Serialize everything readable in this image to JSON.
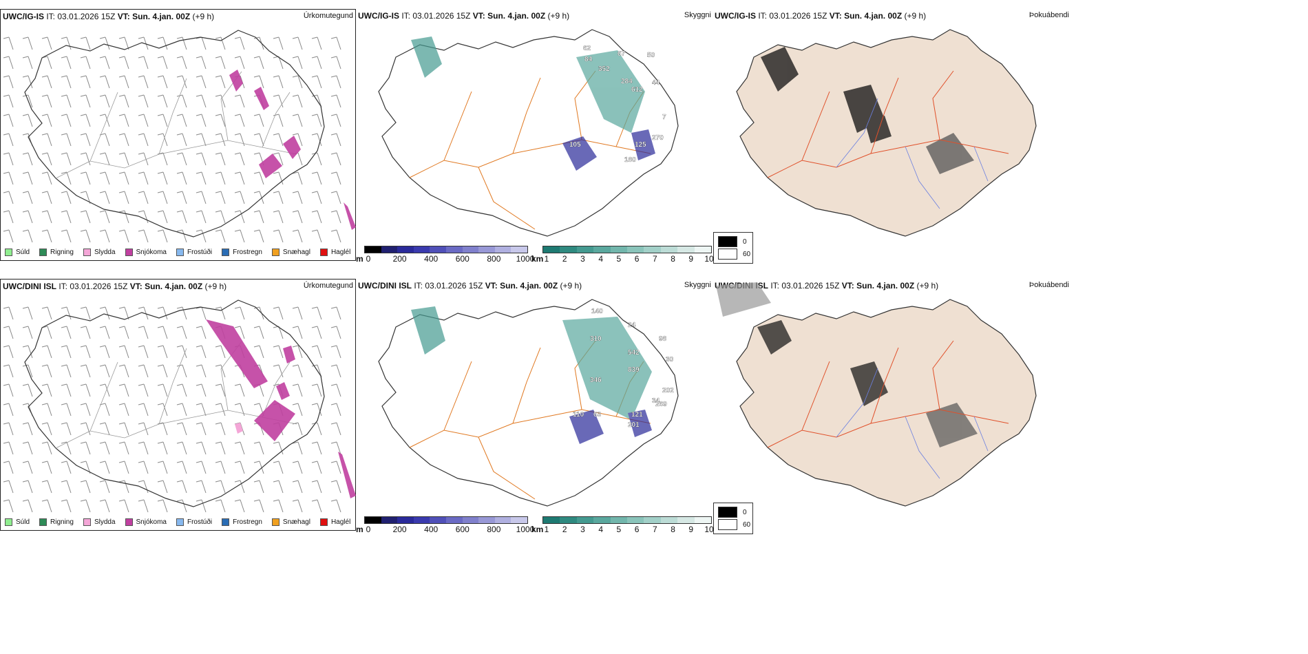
{
  "rows": [
    {
      "id": "igis",
      "model": "UWC/IG-IS",
      "it_label": "IT:",
      "it_value": "03.01.2026 15Z",
      "vt_label": "VT:",
      "vt_value": "Sun. 4.jan. 00Z",
      "lead": "(+9 h)",
      "precip_title": "Úrkomutegund",
      "cloud_title": "Skyggni",
      "fog_title": "Þokuábendi",
      "cloud_labels": [
        "62",
        "84",
        "352",
        "67",
        "284",
        "612",
        "44",
        "50",
        "105",
        "125",
        "270",
        "180",
        "7"
      ]
    },
    {
      "id": "dini",
      "model": "UWC/DINI ISL",
      "it_label": "IT:",
      "it_value": "03.01.2026 15Z",
      "vt_label": "VT:",
      "vt_value": "Sun. 4.jan. 00Z",
      "lead": "(+9 h)",
      "precip_title": "Úrkomutegund",
      "cloud_title": "Skyggni",
      "fog_title": "Þokuábendi",
      "cloud_labels": [
        "310",
        "24",
        "542",
        "98",
        "839",
        "30",
        "34",
        "202",
        "269",
        "121",
        "110",
        "63",
        "201",
        "140",
        "346"
      ]
    }
  ],
  "precip_legend": [
    {
      "label": "Súld",
      "color": "#90ee90"
    },
    {
      "label": "Rigning",
      "color": "#2e8b57"
    },
    {
      "label": "Slydda",
      "color": "#f4a6d7"
    },
    {
      "label": "Snjókoma",
      "color": "#c040a0"
    },
    {
      "label": "Frostúði",
      "color": "#87b8ee"
    },
    {
      "label": "Frostregn",
      "color": "#2a6db5"
    },
    {
      "label": "Snæhagl",
      "color": "#f0a020"
    },
    {
      "label": "Haglél",
      "color": "#e01010"
    }
  ],
  "elevation_bar": {
    "unit": "m",
    "ticks": [
      "0",
      "200",
      "400",
      "600",
      "800",
      "1000"
    ],
    "colors": [
      "#000000",
      "#202070",
      "#2a2a9a",
      "#3a3aae",
      "#5050b8",
      "#6a6ac4",
      "#8080cc",
      "#9898d6",
      "#b0b0e0",
      "#c8c8ea"
    ]
  },
  "visibility_bar": {
    "unit": "km",
    "ticks": [
      "1",
      "2",
      "3",
      "4",
      "5",
      "6",
      "7",
      "8",
      "9",
      "10"
    ],
    "colors": [
      "#1e7a72",
      "#2f8a80",
      "#449a90",
      "#5aa89e",
      "#72b6ac",
      "#8ac4ba",
      "#a2d0c8",
      "#bcdcd6",
      "#d6e8e4",
      "#eef6f4"
    ]
  },
  "fog_legend": [
    {
      "label": "0",
      "color": "#000000"
    },
    {
      "label": "60",
      "color": "#ffffff"
    }
  ]
}
